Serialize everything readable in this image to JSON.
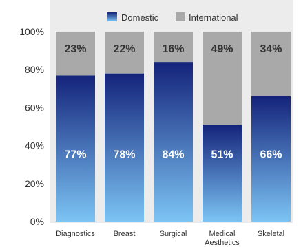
{
  "chart_data": {
    "type": "bar",
    "stacked": true,
    "percent": true,
    "categories": [
      "Diagnostics",
      "Breast",
      "Surgical",
      "Medical\nAesthetics",
      "Skeletal"
    ],
    "series": [
      {
        "name": "Domestic",
        "values": [
          77,
          78,
          84,
          51,
          66
        ],
        "labels": [
          "77%",
          "78%",
          "84%",
          "51%",
          "66%"
        ],
        "color_top": "#14237a",
        "color_bottom": "#7cc4f4"
      },
      {
        "name": "International",
        "values": [
          23,
          22,
          16,
          49,
          34
        ],
        "labels": [
          "23%",
          "22%",
          "16%",
          "49%",
          "34%"
        ],
        "color": "#a9a9a9"
      }
    ],
    "ylim": [
      0,
      100
    ],
    "yticks": [
      "0%",
      "20%",
      "40%",
      "60%",
      "80%",
      "100%"
    ],
    "legend_position": "top",
    "plot_background": "#ececec",
    "grid": false
  }
}
